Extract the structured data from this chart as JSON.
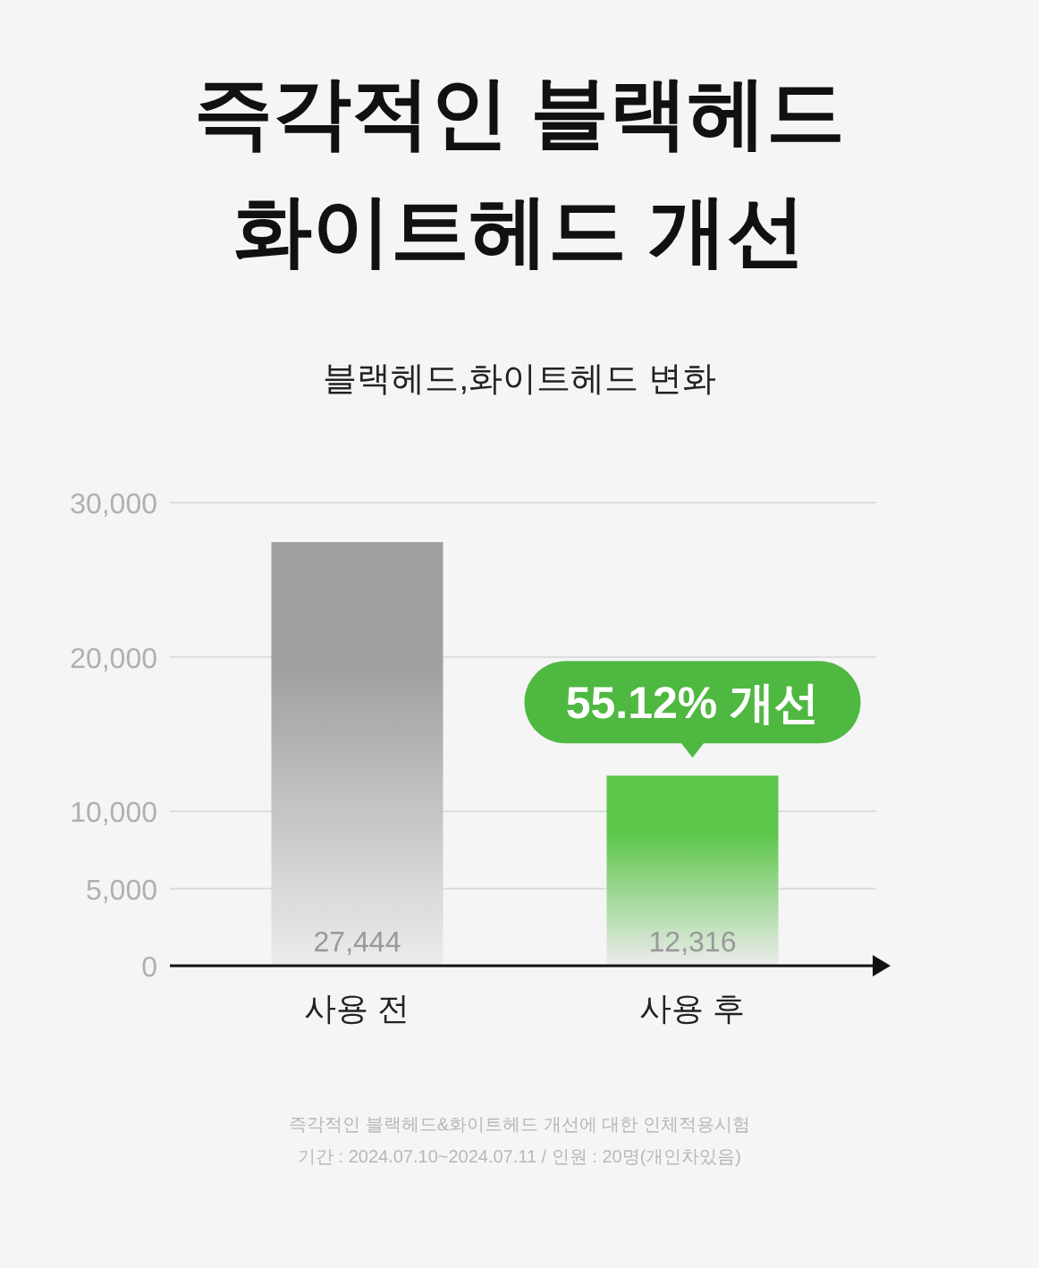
{
  "chart_data": {
    "type": "bar",
    "title": "즉각적인 블랙헤드\n화이트헤드 개선",
    "subtitle": "블랙헤드,화이트헤드 변화",
    "categories": [
      "사용 전",
      "사용 후"
    ],
    "values": [
      27444,
      12316
    ],
    "colors": [
      "#a0a0a0",
      "#5cc64a"
    ],
    "value_labels": [
      "27,444",
      "12,316"
    ],
    "ylim": [
      0,
      30000
    ],
    "yticks": [
      0,
      {
        "value": 5000,
        "label": "5,000"
      },
      {
        "value": 10000,
        "label": "10,000"
      },
      {
        "value": 20000,
        "label": "20,000"
      },
      {
        "value": 30000,
        "label": "30,000"
      }
    ],
    "grid": "y",
    "annotations": [
      {
        "text": "55.12% 개선",
        "x": "사용 후",
        "y": 12316
      },
      "즉각적인 블랙헤드&화이트헤드 개선에 대한 인체적용시험",
      "기간 : 2024.07.10~2024.07.11 / 인원 : 20명(개인차있음)"
    ]
  }
}
